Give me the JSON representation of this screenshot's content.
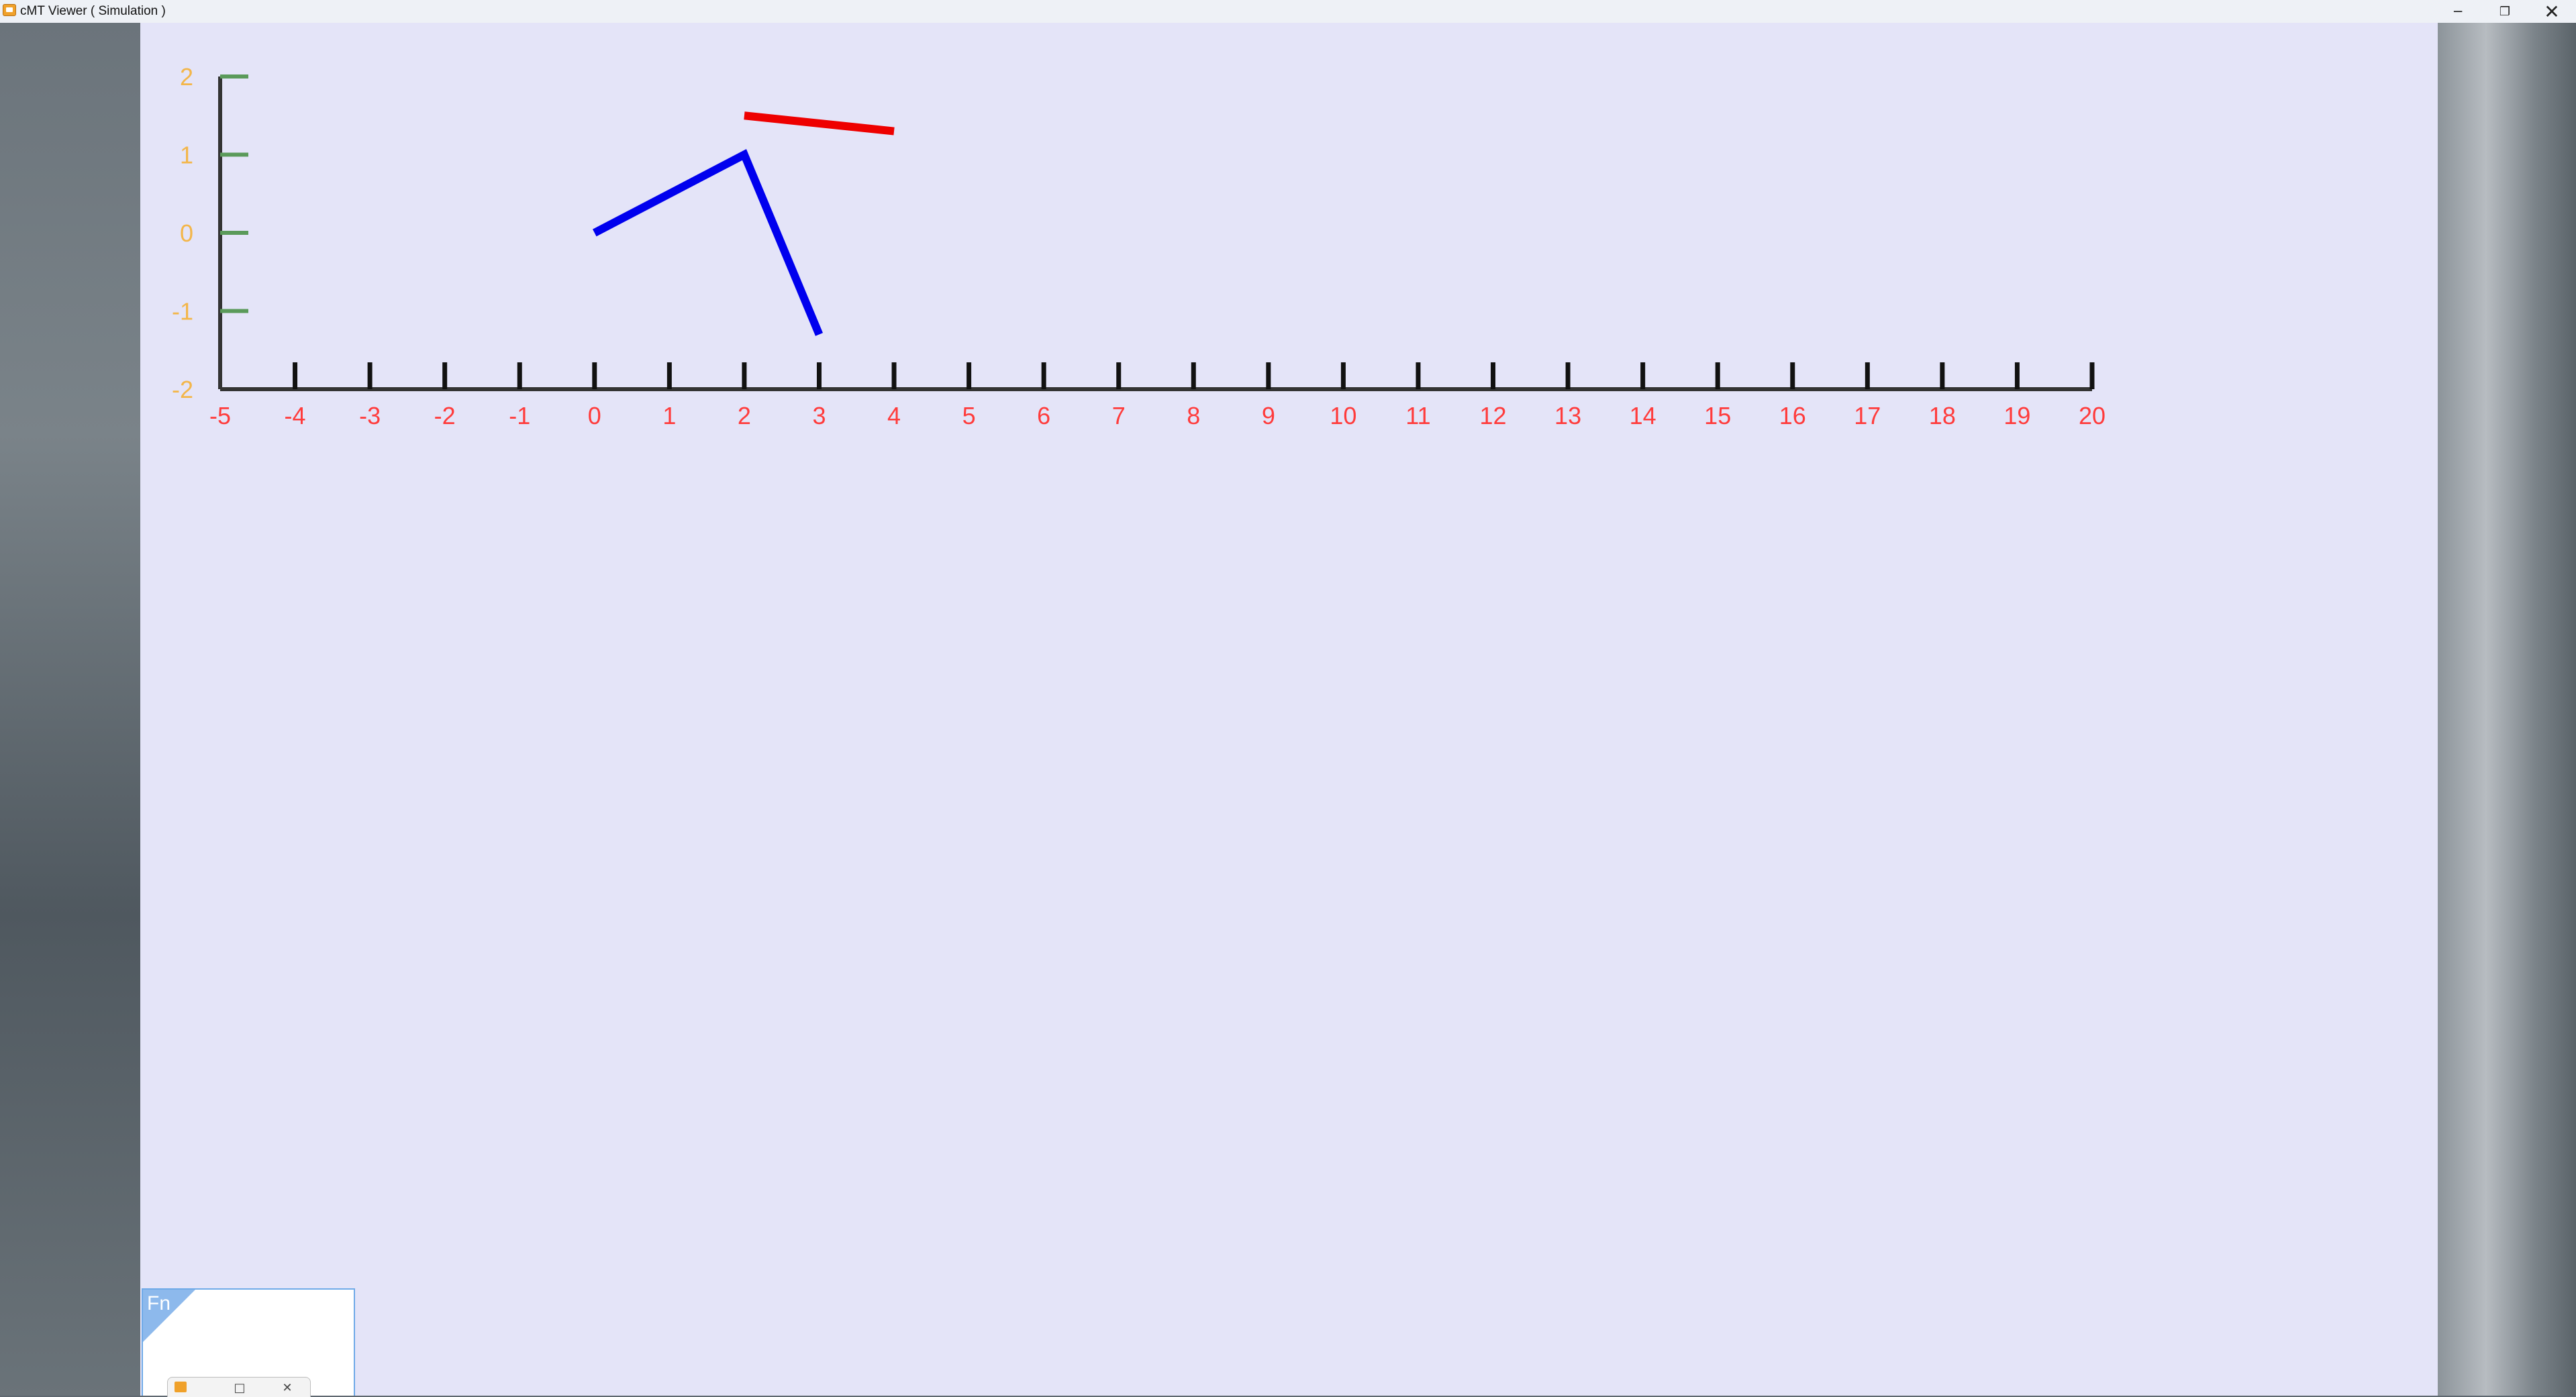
{
  "window": {
    "title": "cMT Viewer ( Simulation )",
    "icon": "cmt-viewer-app-icon",
    "controls": {
      "minimize": "─",
      "restore": "❐",
      "close": "✕"
    }
  },
  "chart_data": {
    "type": "line",
    "title": "",
    "xlabel": "",
    "ylabel": "",
    "xlim": [
      -5,
      20
    ],
    "ylim": [
      -2,
      2
    ],
    "x_ticks": [
      -5,
      -4,
      -3,
      -2,
      -1,
      0,
      1,
      2,
      3,
      4,
      5,
      6,
      7,
      8,
      9,
      10,
      11,
      12,
      13,
      14,
      15,
      16,
      17,
      18,
      19,
      20
    ],
    "y_ticks": [
      2,
      1,
      0,
      -1,
      -2
    ],
    "grid": false,
    "legend": "none",
    "colors": {
      "x_tick_label": "#ff3b3b",
      "y_tick_label": "#f3b64a",
      "x_tick_mark": "#111111",
      "y_tick_mark": "#5a9a5a",
      "axis": "#333333"
    },
    "series": [
      {
        "color": "#0000ee",
        "points": [
          [
            0,
            0
          ],
          [
            2,
            1
          ],
          [
            3,
            -1.3
          ]
        ]
      },
      {
        "color": "#ee0000",
        "points": [
          [
            2,
            1.5
          ],
          [
            4,
            1.3
          ]
        ]
      }
    ]
  },
  "fn_panel": {
    "label": "Fn",
    "mini_window": {
      "icon": "cmt-viewer-app-icon",
      "maximize": "□",
      "close": "✕"
    }
  }
}
